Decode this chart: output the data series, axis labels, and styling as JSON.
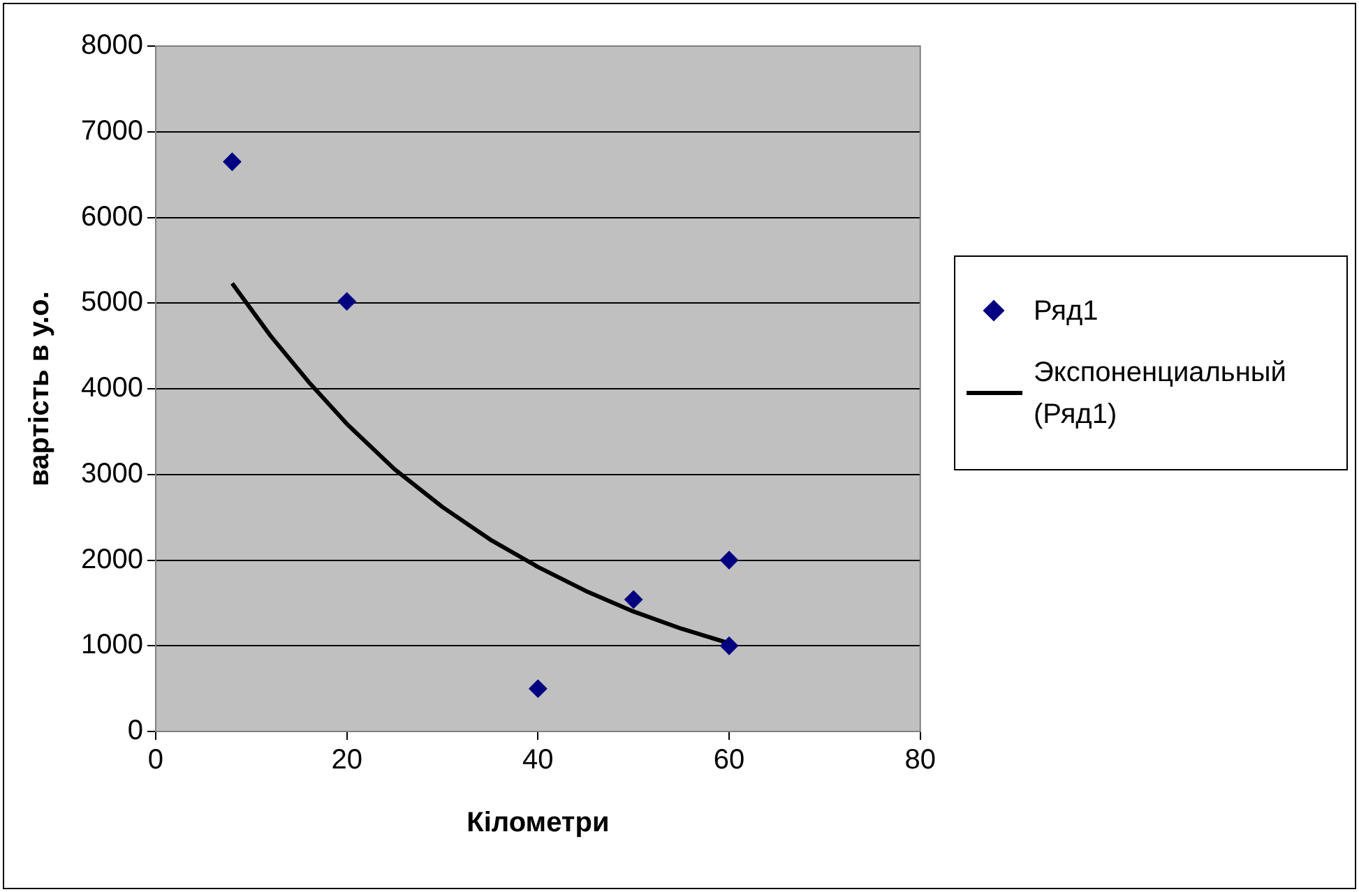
{
  "chart_data": {
    "type": "scatter",
    "xlabel": "Кілометри",
    "ylabel": "вартість в у.о.",
    "xlim": [
      0,
      80
    ],
    "xticks": [
      0,
      20,
      40,
      60,
      80
    ],
    "ylim": [
      0,
      8000
    ],
    "yticks": [
      0,
      1000,
      2000,
      3000,
      4000,
      5000,
      6000,
      7000,
      8000
    ],
    "grid": "y",
    "legend": "right",
    "marker": "diamond",
    "series": [
      {
        "name": "Ряд1",
        "type": "scatter",
        "color": "#000080",
        "x": [
          8,
          20,
          40,
          50,
          60,
          60
        ],
        "values": [
          6650,
          5020,
          500,
          1540,
          2000,
          1000
        ]
      },
      {
        "name": "Экспоненциальный (Ряд1)",
        "type": "line",
        "color": "#000000",
        "marker": "none",
        "line_style": "solid",
        "x": [
          8,
          12,
          16,
          20,
          25,
          30,
          35,
          40,
          45,
          50,
          55,
          60
        ],
        "values": [
          5230,
          4620,
          4080,
          3590,
          3060,
          2620,
          2240,
          1920,
          1640,
          1400,
          1200,
          1030
        ]
      }
    ]
  }
}
